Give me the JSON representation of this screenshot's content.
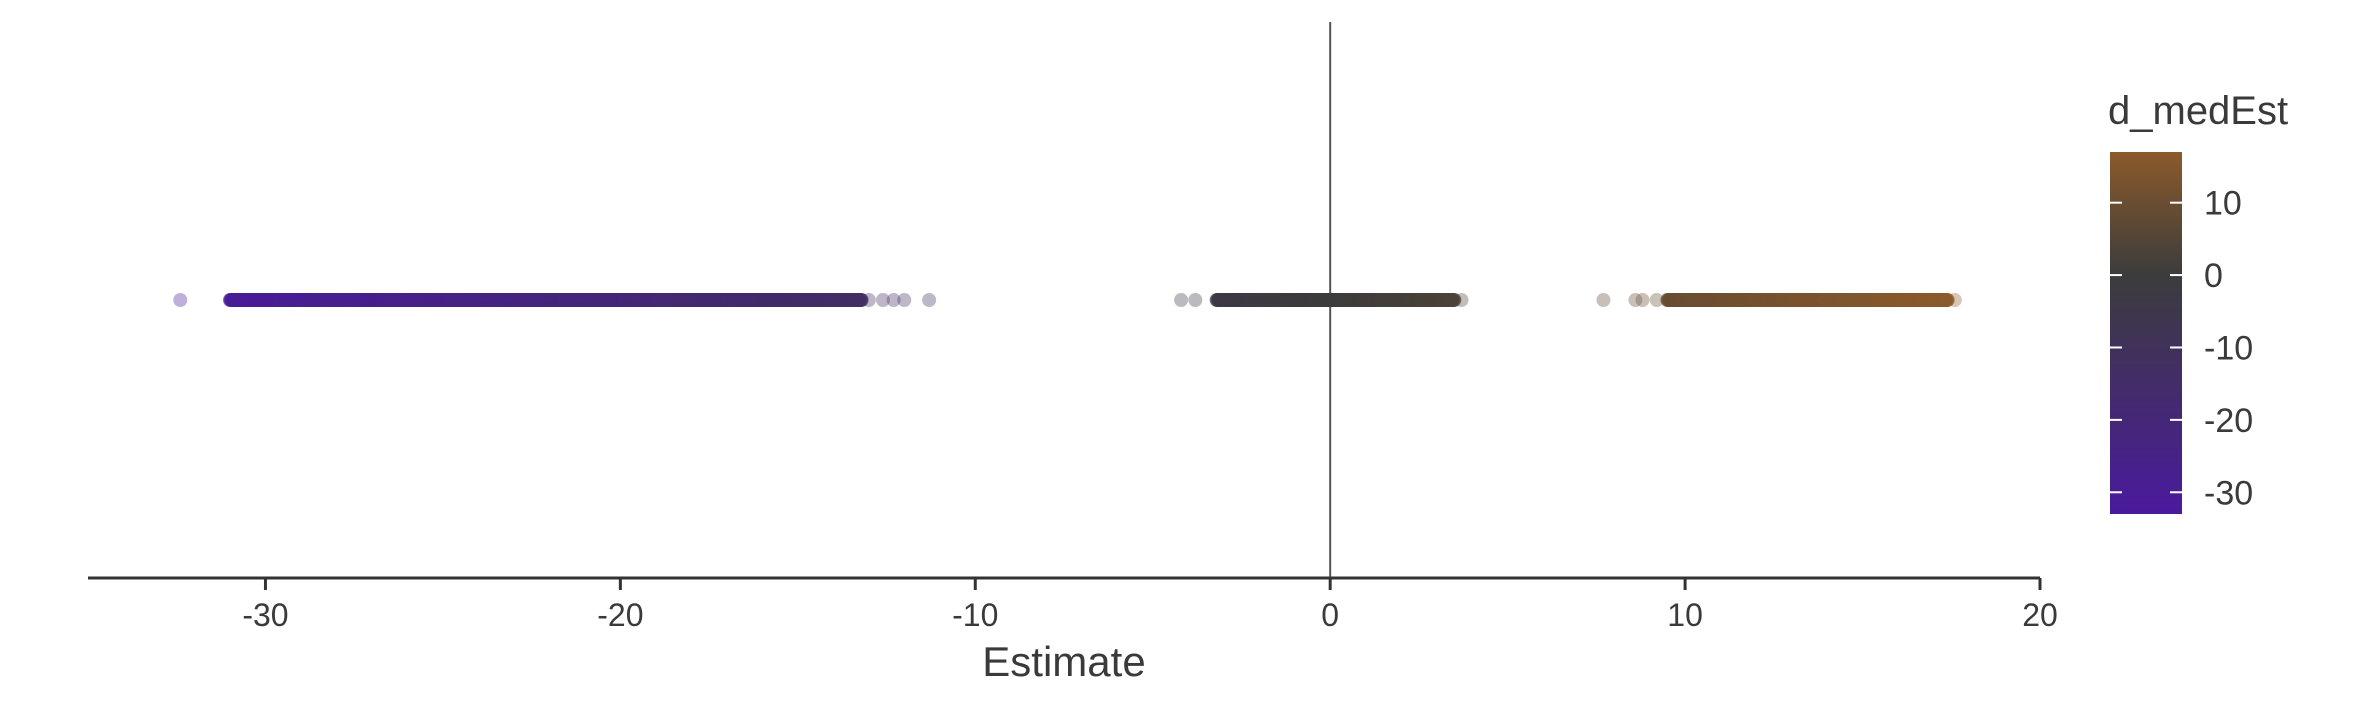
{
  "chart_data": {
    "type": "scatter",
    "title": "",
    "xlabel": "Estimate",
    "ylabel": "",
    "xlim": [
      -35,
      20
    ],
    "x_ticks": [
      -30,
      -20,
      -10,
      0,
      10,
      20
    ],
    "x_tick_labels": [
      "-30",
      "-20",
      "-10",
      "0",
      "10",
      "20"
    ],
    "reference_line_x": 0,
    "grid": false,
    "point_alpha": 0.35,
    "clusters": [
      {
        "dense_range": [
          -31,
          -13.2
        ],
        "outliers": [
          -32.4,
          -13.0,
          -12.6,
          -12.3,
          -12.0,
          -11.3
        ]
      },
      {
        "dense_range": [
          -3.2,
          3.5
        ],
        "outliers": [
          -4.2,
          -3.8,
          3.7
        ]
      },
      {
        "dense_range": [
          9.5,
          17.4
        ],
        "outliers": [
          7.7,
          8.6,
          8.8,
          9.2,
          17.6
        ]
      }
    ],
    "colorbar": {
      "title": "d_medEst",
      "range": [
        -33,
        17
      ],
      "ticks": [
        10,
        0,
        -10,
        -20,
        -30
      ],
      "tick_labels": [
        "10",
        "0",
        "-10",
        "-20",
        "-30"
      ],
      "colors": {
        "low": "#4a1a9e",
        "mid": "#3c3c3c",
        "high": "#8b5a2b"
      },
      "position": "right"
    }
  }
}
